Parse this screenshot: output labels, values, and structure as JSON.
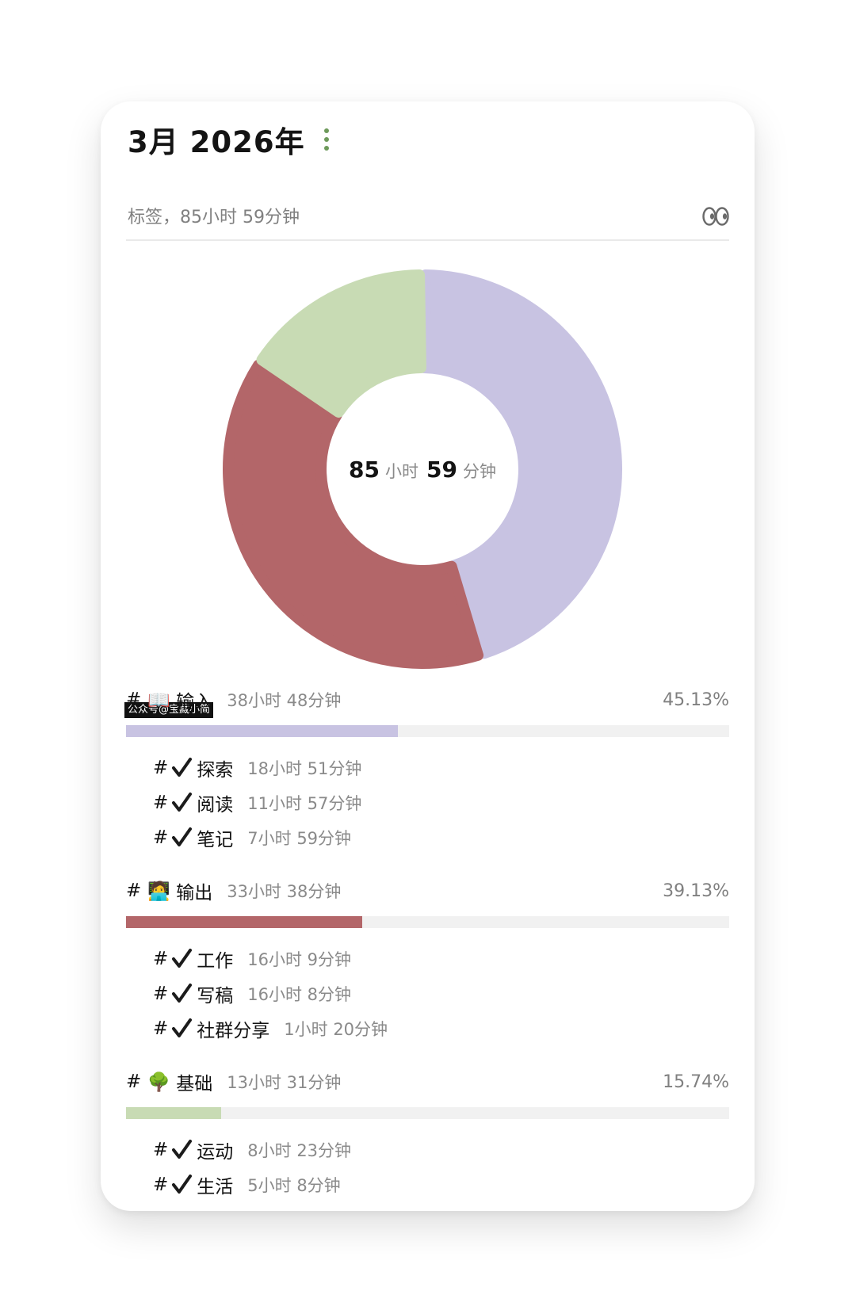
{
  "header": {
    "title": "3月 2026年"
  },
  "summary": {
    "label": "标签，85小时 59分钟"
  },
  "center": {
    "hours": "85",
    "hours_unit": "小时",
    "minutes": "59",
    "minutes_unit": "分钟"
  },
  "watermark": "公众号@宝藏小简",
  "colors": {
    "input": "#c8c3e2",
    "output": "#b36669",
    "base": "#c8dbb4",
    "check": "#1b1b1b",
    "accent": "#6e9a5b"
  },
  "categories": [
    {
      "hash": "#",
      "emoji": "📖",
      "emoji_name": "open-book-icon",
      "name": "输入",
      "duration": "38小时 48分钟",
      "percent": "45.13%",
      "ratio": 0.4513,
      "children": [
        {
          "hash": "#",
          "name": "探索",
          "duration": "18小时 51分钟"
        },
        {
          "hash": "#",
          "name": "阅读",
          "duration": "11小时 57分钟"
        },
        {
          "hash": "#",
          "name": "笔记",
          "duration": "7小时 59分钟"
        }
      ]
    },
    {
      "hash": "#",
      "emoji": "🧑‍💻",
      "emoji_name": "technologist-icon",
      "name": "输出",
      "duration": "33小时 38分钟",
      "percent": "39.13%",
      "ratio": 0.3913,
      "children": [
        {
          "hash": "#",
          "name": "工作",
          "duration": "16小时 9分钟"
        },
        {
          "hash": "#",
          "name": "写稿",
          "duration": "16小时 8分钟"
        },
        {
          "hash": "#",
          "name": "社群分享",
          "duration": "1小时 20分钟"
        }
      ]
    },
    {
      "hash": "#",
      "emoji": "🌳",
      "emoji_name": "tree-icon",
      "name": "基础",
      "duration": "13小时 31分钟",
      "percent": "15.74%",
      "ratio": 0.1574,
      "children": [
        {
          "hash": "#",
          "name": "运动",
          "duration": "8小时 23分钟"
        },
        {
          "hash": "#",
          "name": "生活",
          "duration": "5小时 8分钟"
        }
      ]
    }
  ]
}
